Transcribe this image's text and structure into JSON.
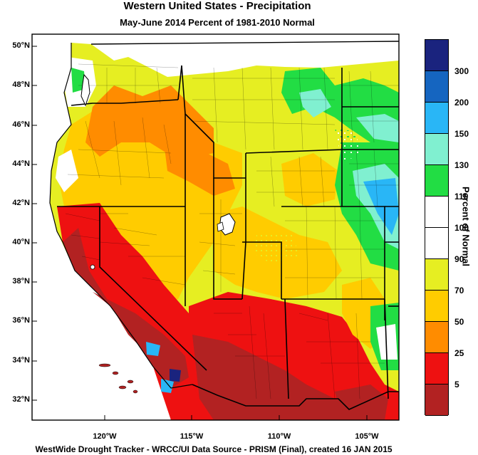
{
  "title": "Western United States - Precipitation",
  "subtitle": "May-June 2014  Percent of 1981-2010 Normal",
  "footer": "WestWide Drought Tracker - WRCC/UI  Data Source - PRISM (Final), created 16 JAN 2015",
  "colorbar": {
    "label": "Percent of Normal",
    "tick_labels": [
      "300",
      "200",
      "150",
      "130",
      "110",
      "100",
      "90",
      "70",
      "50",
      "25",
      "5"
    ],
    "bins": [
      {
        "color": "#1a237e",
        "range": ">300"
      },
      {
        "color": "#1565c0",
        "range": "200-300"
      },
      {
        "color": "#29b6f6",
        "range": "150-200"
      },
      {
        "color": "#80f0d0",
        "range": "130-150"
      },
      {
        "color": "#22dd44",
        "range": "110-130"
      },
      {
        "color": "#ffffff",
        "range": "100-110"
      },
      {
        "color": "#ffffff",
        "range": "90-100"
      },
      {
        "color": "#e6ee22",
        "range": "70-90"
      },
      {
        "color": "#ffcc00",
        "range": "50-70"
      },
      {
        "color": "#ff8c00",
        "range": "25-50"
      },
      {
        "color": "#ee1111",
        "range": "5-25"
      },
      {
        "color": "#b22222",
        "range": "<5"
      }
    ]
  },
  "latitude_labels": [
    "50°N",
    "48°N",
    "46°N",
    "44°N",
    "42°N",
    "40°N",
    "38°N",
    "36°N",
    "34°N",
    "32°N"
  ],
  "longitude_labels": [
    "120°W",
    "115°W",
    "110°W",
    "105°W"
  ]
}
